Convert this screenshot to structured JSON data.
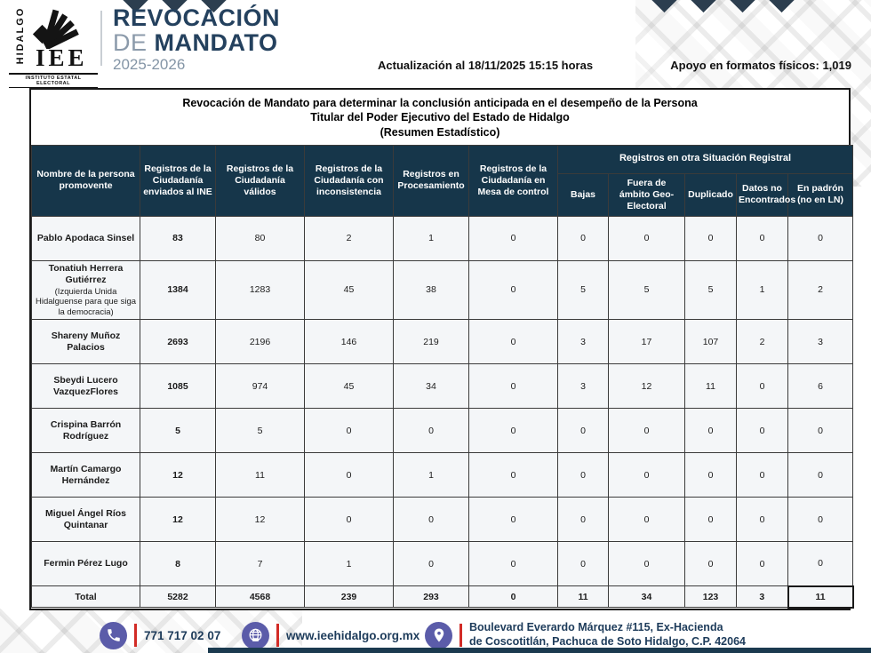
{
  "colors": {
    "header_navy": "#16364a",
    "cell_bg": "#f4f6f8",
    "title_navy": "#24415e",
    "title_gray": "#8b9aaa",
    "footer_icon_purple": "#5b5ca9",
    "separator_red": "#d22b26",
    "bottom_bar_navy": "#1b3a4f"
  },
  "logo": {
    "state": "HIDALGO",
    "acronym": "IEE",
    "institute": "INSTITUTO ESTATAL ELECTORAL"
  },
  "header": {
    "title_line1": "REVOCACIÓN",
    "title_line2_light": "DE",
    "title_line2_bold": "MANDATO",
    "years": "2025-2026",
    "update": "Actualización al 18/11/2025 15:15 horas",
    "physical_support": "Apoyo en formatos físicos: 1,019"
  },
  "table": {
    "title_line1": "Revocación de Mandato para determinar la conclusión anticipada en el desempeño de la Persona",
    "title_line2": "Titular del Poder Ejecutivo del Estado de Hidalgo",
    "title_line3": "(Resumen Estadístico)",
    "columns": {
      "name": "Nombre de la persona promovente",
      "sent_ine": "Registros de la Ciudadanía enviados al INE",
      "valid": "Registros de la Ciudadanía válidos",
      "inconsistent": "Registros de la Ciudadanía con inconsistencia",
      "processing": "Registros en Procesamiento",
      "control_desk": "Registros de la Ciudadanía en Mesa de control",
      "other_group": "Registros en otra Situación Registral",
      "sub": [
        "Bajas",
        "Fuera de ámbito Geo-Electoral",
        "Duplicado",
        "Datos no Encontrados",
        "En padrón (no en LN)"
      ]
    },
    "rows": [
      {
        "name": "Pablo Apodaca Sinsel",
        "subtitle": "",
        "values": [
          "83",
          "80",
          "2",
          "1",
          "0",
          "0",
          "0",
          "0",
          "0",
          "0"
        ]
      },
      {
        "name": "Tonatiuh Herrera Gutiérrez",
        "subtitle": "(Izquierda Unida Hidalguense para que siga la democracia)",
        "values": [
          "1384",
          "1283",
          "45",
          "38",
          "0",
          "5",
          "5",
          "5",
          "1",
          "2"
        ]
      },
      {
        "name": "Shareny Muñoz Palacios",
        "subtitle": "",
        "values": [
          "2693",
          "2196",
          "146",
          "219",
          "0",
          "3",
          "17",
          "107",
          "2",
          "3"
        ]
      },
      {
        "name": "Sbeydi Lucero VazquezFlores",
        "subtitle": "",
        "values": [
          "1085",
          "974",
          "45",
          "34",
          "0",
          "3",
          "12",
          "11",
          "0",
          "6"
        ]
      },
      {
        "name": "Crispina Barrón Rodríguez",
        "subtitle": "",
        "values": [
          "5",
          "5",
          "0",
          "0",
          "0",
          "0",
          "0",
          "0",
          "0",
          "0"
        ]
      },
      {
        "name": "Martín Camargo Hernández",
        "subtitle": "",
        "values": [
          "12",
          "11",
          "0",
          "1",
          "0",
          "0",
          "0",
          "0",
          "0",
          "0"
        ]
      },
      {
        "name": "Miguel Ángel Ríos Quintanar",
        "subtitle": "",
        "values": [
          "12",
          "12",
          "0",
          "0",
          "0",
          "0",
          "0",
          "0",
          "0",
          "0"
        ]
      },
      {
        "name": "Fermin Pérez Lugo",
        "subtitle": "",
        "values": [
          "8",
          "7",
          "1",
          "0",
          "0",
          "0",
          "0",
          "0",
          "0",
          "0"
        ]
      }
    ],
    "total": {
      "label": "Total",
      "values": [
        "5282",
        "4568",
        "239",
        "293",
        "0",
        "11",
        "34",
        "123",
        "3",
        "11"
      ]
    }
  },
  "footer": {
    "phone": "771 717 02 07",
    "website": "www.ieehidalgo.org.mx",
    "address_line1": "Boulevard Everardo Márquez #115, Ex-Hacienda",
    "address_line2": "de Coscotitlán, Pachuca de Soto Hidalgo, C.P. 42064"
  }
}
